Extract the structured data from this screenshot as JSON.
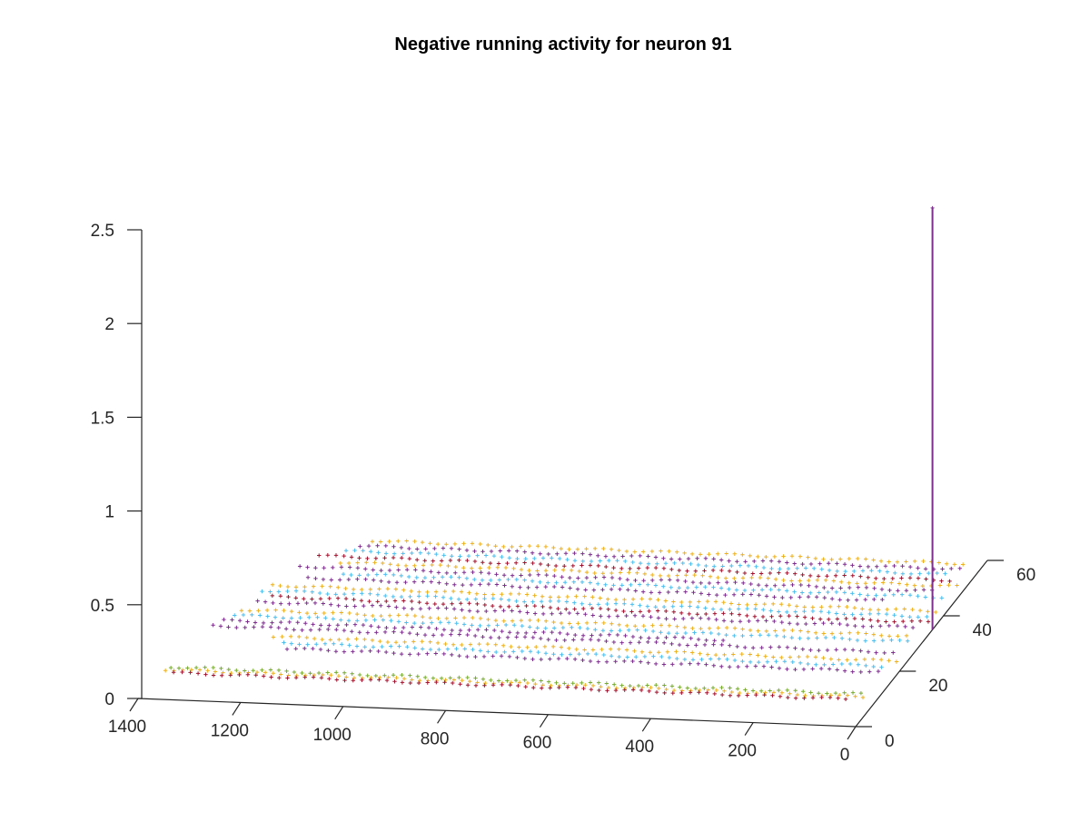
{
  "chart_data": {
    "type": "scatter",
    "title": "Negative running activity for neuron 91",
    "xlabel": "",
    "ylabel": "",
    "zlabel": "",
    "x_ticks": [
      "0",
      "200",
      "400",
      "600",
      "800",
      "1000",
      "1200",
      "1400"
    ],
    "y_ticks": [
      "0",
      "20",
      "40",
      "60"
    ],
    "z_ticks": [
      "0",
      "0.5",
      "1",
      "1.5",
      "2",
      "2.5"
    ],
    "xlim": [
      0,
      1400
    ],
    "ylim": [
      0,
      60
    ],
    "zlim": [
      0,
      2.5
    ],
    "marker": "+",
    "grid": "off",
    "legend": "none",
    "colors": [
      "#7E2F8E",
      "#4DBEEE",
      "#EDB120",
      "#A2142F",
      "#77AC30",
      "#0072BD"
    ],
    "series": [
      {
        "color_index": 2,
        "y": 58.5,
        "x": [
          40,
          1200
        ]
      },
      {
        "color_index": 0,
        "y": 56.5,
        "x": [
          40,
          1210
        ]
      },
      {
        "color_index": 1,
        "y": 54.5,
        "x": [
          60,
          1230
        ]
      },
      {
        "color_index": 3,
        "y": 52.5,
        "x": [
          40,
          1280
        ]
      },
      {
        "color_index": 2,
        "y": 50.5,
        "x": [
          20,
          1230
        ]
      },
      {
        "color_index": 0,
        "y": 48.5,
        "x": [
          60,
          1300
        ]
      },
      {
        "color_index": 1,
        "y": 46.5,
        "x": [
          30,
          1200
        ]
      },
      {
        "color_index": 0,
        "y": 44.5,
        "x": [
          140,
          1260
        ]
      },
      {
        "color_index": 2,
        "y": 41.5,
        "x": [
          20,
          1320
        ]
      },
      {
        "color_index": 1,
        "y": 39.5,
        "x": [
          30,
          1330
        ]
      },
      {
        "color_index": 3,
        "y": 37.5,
        "x": [
          20,
          1310
        ]
      },
      {
        "color_index": 0,
        "y": 35.5,
        "x": [
          40,
          1330
        ]
      },
      {
        "color_index": 2,
        "y": 32.5,
        "x": [
          40,
          1350
        ]
      },
      {
        "color_index": 1,
        "y": 30.5,
        "x": [
          30,
          1350
        ]
      },
      {
        "color_index": 0,
        "y": 28.5,
        "x": [
          380,
          1370
        ]
      },
      {
        "color_index": 0,
        "y": 26.5,
        "x": [
          40,
          1380
        ]
      },
      {
        "color_index": 2,
        "y": 23.5,
        "x": [
          20,
          1240
        ]
      },
      {
        "color_index": 1,
        "y": 21.5,
        "x": [
          40,
          1220
        ]
      },
      {
        "color_index": 0,
        "y": 19.5,
        "x": [
          40,
          1200
        ]
      },
      {
        "color_index": 4,
        "y": 11.5,
        "x": [
          40,
          1390
        ]
      },
      {
        "color_index": 2,
        "y": 10.5,
        "x": [
          30,
          1400
        ]
      },
      {
        "color_index": 3,
        "y": 9.5,
        "x": [
          60,
          1380
        ]
      }
    ],
    "stem": {
      "x": 0,
      "y": 35,
      "z_top": 2.25,
      "color": "#7E2F8E"
    }
  }
}
